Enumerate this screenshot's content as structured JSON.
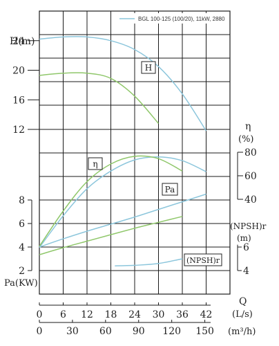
{
  "chart_data": {
    "type": "line",
    "legend": "BGL 100-125 (100/20), 11kW, 2880",
    "x_axis": {
      "label": "Q",
      "unit": "(L/s)",
      "ticks": [
        0,
        6,
        12,
        18,
        24,
        30,
        36,
        42
      ],
      "range": [
        0,
        48
      ]
    },
    "x2_axis": {
      "unit": "(m³/h)",
      "ticks": [
        0,
        30,
        60,
        90,
        120,
        150
      ]
    },
    "head_axis": {
      "label": "H(m)",
      "ticks": [
        12,
        16,
        20,
        24
      ],
      "range": [
        12,
        28
      ]
    },
    "eff_axis": {
      "label": "η",
      "unit": "(%)",
      "ticks": [
        40,
        60,
        80
      ],
      "range": [
        40,
        80
      ]
    },
    "power_axis": {
      "label": "Pa(KW)",
      "ticks": [
        2,
        4,
        6,
        8
      ],
      "range": [
        2,
        8
      ]
    },
    "npsh_axis": {
      "label": "(NPSH)r",
      "unit": "(m)",
      "ticks": [
        4,
        6
      ],
      "range": [
        4,
        6
      ]
    },
    "curve_labels": {
      "head": "H",
      "efficiency": "η",
      "power": "Pa",
      "npsh": "(NPSH)r"
    },
    "series": [
      {
        "name": "BGL 100-125 (100/20), 11kW, 2880",
        "kind": "head",
        "x": [
          0,
          6,
          12,
          18,
          24,
          30,
          36,
          42
        ],
        "y": [
          24.2,
          24.5,
          24.5,
          24.0,
          22.8,
          20.5,
          16.8,
          11.8
        ]
      },
      {
        "kind": "head",
        "x": [
          0,
          6,
          12,
          18,
          24,
          30
        ],
        "y": [
          19.3,
          19.6,
          19.6,
          18.9,
          16.5,
          12.8
        ]
      },
      {
        "name": "BGL 100-125 (100/20), 11kW, 2880",
        "kind": "efficiency",
        "x": [
          0,
          6,
          12,
          18,
          24,
          30,
          36,
          42
        ],
        "y": [
          -1,
          26,
          49,
          64,
          73.5,
          76,
          72.8,
          63.5
        ]
      },
      {
        "kind": "efficiency",
        "x": [
          0,
          6,
          12,
          18,
          24,
          30,
          36
        ],
        "y": [
          0,
          30,
          55,
          70,
          76.5,
          74.5,
          64
        ]
      },
      {
        "name": "BGL 100-125 (100/20), 11kW, 2880",
        "kind": "power",
        "x": [
          0,
          6,
          12,
          18,
          24,
          30,
          36,
          42
        ],
        "y": [
          4.0,
          4.7,
          5.35,
          5.95,
          6.55,
          7.2,
          7.85,
          8.5
        ]
      },
      {
        "kind": "power",
        "x": [
          0,
          6,
          12,
          18,
          24,
          30,
          36
        ],
        "y": [
          3.35,
          3.95,
          4.5,
          5.05,
          5.6,
          6.1,
          6.6
        ]
      },
      {
        "name": "BGL 100-125 (100/20), 11kW, 2880",
        "kind": "npsh",
        "x": [
          19,
          24,
          30,
          36
        ],
        "y": [
          4.4,
          4.45,
          4.6,
          5.0
        ]
      }
    ]
  }
}
